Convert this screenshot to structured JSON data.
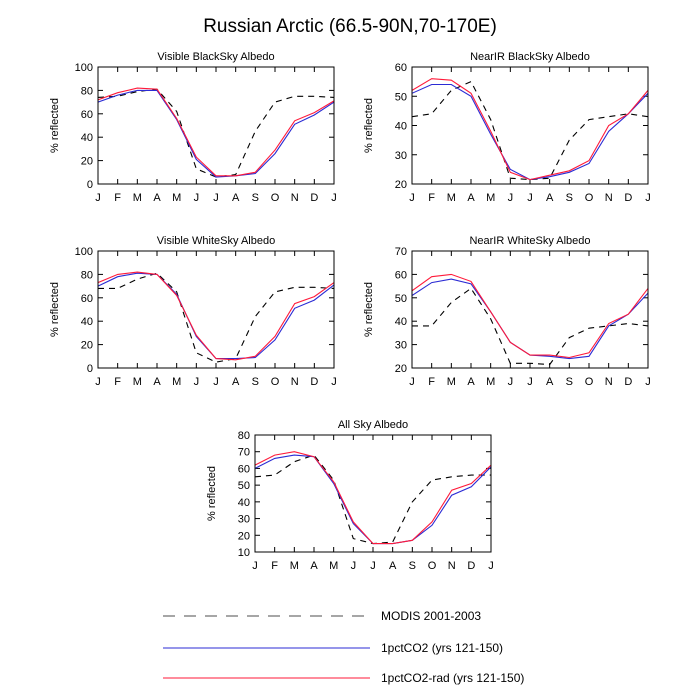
{
  "figure": {
    "title": "Russian Arctic (66.5-90N,70-170E)"
  },
  "months": [
    "J",
    "F",
    "M",
    "A",
    "M",
    "J",
    "J",
    "A",
    "S",
    "O",
    "N",
    "D",
    "J"
  ],
  "colors": {
    "modis": "#000000",
    "blue": "#2b2bd4",
    "red": "#ff1a3a"
  },
  "legend": [
    {
      "label": "MODIS 2001-2003",
      "style": "dashed",
      "color": "#000000"
    },
    {
      "label": "1pctCO2 (yrs 121-150)",
      "style": "solid",
      "color": "#2b2bd4"
    },
    {
      "label": "1pctCO2-rad (yrs 121-150)",
      "style": "solid",
      "color": "#ff1a3a"
    }
  ],
  "chart_data": [
    {
      "type": "line",
      "title": "Visible BlackSky Albedo",
      "ylabel": "% reflected",
      "ylim": [
        0,
        100
      ],
      "yticks": [
        0,
        20,
        40,
        60,
        80,
        100
      ],
      "x": [
        1,
        2,
        3,
        4,
        5,
        6,
        7,
        8,
        9,
        10,
        11,
        12,
        13
      ],
      "series": [
        {
          "name": "MODIS 2001-2003",
          "values": [
            74,
            75,
            79,
            81,
            62,
            13,
            6,
            8,
            45,
            70,
            75,
            75,
            74
          ]
        },
        {
          "name": "1pctCO2 (yrs 121-150)",
          "values": [
            70,
            76,
            80,
            80,
            55,
            21,
            6,
            7,
            9,
            26,
            51,
            59,
            70
          ]
        },
        {
          "name": "1pctCO2-rad (yrs 121-150)",
          "values": [
            72,
            78,
            82,
            81,
            56,
            23,
            7,
            7,
            10,
            29,
            54,
            61,
            71
          ]
        }
      ]
    },
    {
      "type": "line",
      "title": "NearIR BlackSky Albedo",
      "ylabel": "% reflected",
      "ylim": [
        20,
        60
      ],
      "yticks": [
        20,
        30,
        40,
        50,
        60
      ],
      "x": [
        1,
        2,
        3,
        4,
        5,
        6,
        7,
        8,
        9,
        10,
        11,
        12,
        13
      ],
      "series": [
        {
          "name": "MODIS 2001-2003",
          "values": [
            43,
            44,
            52,
            55,
            42,
            22,
            21.5,
            22,
            35,
            42,
            43,
            44,
            43
          ]
        },
        {
          "name": "1pctCO2 (yrs 121-150)",
          "values": [
            51,
            54,
            54,
            50,
            37,
            25,
            21.5,
            22.5,
            24,
            27,
            38,
            44,
            51
          ]
        },
        {
          "name": "1pctCO2-rad (yrs 121-150)",
          "values": [
            52,
            56,
            55.5,
            51,
            38,
            24,
            21.5,
            23,
            24.5,
            28,
            40,
            44,
            52
          ]
        }
      ]
    },
    {
      "type": "line",
      "title": "Visible WhiteSky Albedo",
      "ylabel": "% reflected",
      "ylim": [
        0,
        100
      ],
      "yticks": [
        0,
        20,
        40,
        60,
        80,
        100
      ],
      "x": [
        1,
        2,
        3,
        4,
        5,
        6,
        7,
        8,
        9,
        10,
        11,
        12,
        13
      ],
      "series": [
        {
          "name": "MODIS 2001-2003",
          "values": [
            68,
            68,
            76,
            81,
            65,
            13,
            5,
            8,
            44,
            65,
            69,
            69,
            68
          ]
        },
        {
          "name": "1pctCO2 (yrs 121-150)",
          "values": [
            70,
            78,
            81,
            80,
            63,
            27,
            8,
            8,
            9,
            24,
            51,
            58,
            71
          ]
        },
        {
          "name": "1pctCO2-rad (yrs 121-150)",
          "values": [
            73,
            80,
            82,
            80,
            62,
            28,
            8,
            7,
            10,
            27,
            55,
            61,
            73
          ]
        }
      ]
    },
    {
      "type": "line",
      "title": "NearIR WhiteSky Albedo",
      "ylabel": "% reflected",
      "ylim": [
        20,
        70
      ],
      "yticks": [
        20,
        30,
        40,
        50,
        60,
        70
      ],
      "x": [
        1,
        2,
        3,
        4,
        5,
        6,
        7,
        8,
        9,
        10,
        11,
        12,
        13
      ],
      "series": [
        {
          "name": "MODIS 2001-2003",
          "values": [
            38,
            38,
            48,
            54,
            41,
            22,
            22,
            21.5,
            33,
            37,
            38,
            39,
            38
          ]
        },
        {
          "name": "1pctCO2 (yrs 121-150)",
          "values": [
            51,
            56.5,
            58,
            56,
            44,
            31,
            25.5,
            25,
            24,
            25,
            38,
            43,
            52
          ]
        },
        {
          "name": "1pctCO2-rad (yrs 121-150)",
          "values": [
            53,
            59,
            60,
            57,
            44,
            31,
            25.5,
            25.5,
            24.5,
            26.5,
            39,
            43,
            54
          ]
        }
      ]
    },
    {
      "type": "line",
      "title": "All Sky Albedo",
      "ylabel": "% reflected",
      "ylim": [
        10,
        80
      ],
      "yticks": [
        10,
        20,
        30,
        40,
        50,
        60,
        70,
        80
      ],
      "x": [
        1,
        2,
        3,
        4,
        5,
        6,
        7,
        8,
        9,
        10,
        11,
        12,
        13
      ],
      "series": [
        {
          "name": "MODIS 2001-2003",
          "values": [
            55,
            56,
            64,
            68,
            53,
            18,
            15,
            16,
            40,
            53,
            55,
            56,
            56
          ]
        },
        {
          "name": "1pctCO2 (yrs 121-150)",
          "values": [
            60,
            66,
            68,
            67,
            51,
            27,
            15,
            15,
            17,
            26,
            44,
            49,
            61
          ]
        },
        {
          "name": "1pctCO2-rad (yrs 121-150)",
          "values": [
            62,
            68,
            70,
            67,
            52,
            28,
            15,
            15,
            17,
            28,
            47,
            51,
            62
          ]
        }
      ]
    }
  ]
}
